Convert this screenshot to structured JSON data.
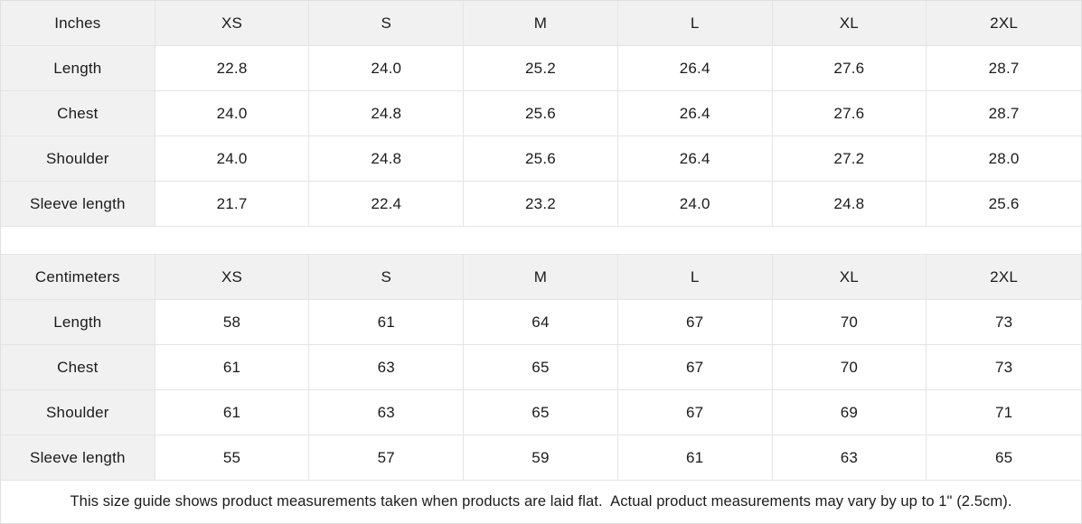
{
  "panel": {
    "border_color": "#e0e0e0",
    "header_bg": "#f1f1f2",
    "text_color": "#1b1b1b"
  },
  "tables": [
    {
      "unit_label": "Inches",
      "columns": [
        "XS",
        "S",
        "M",
        "L",
        "XL",
        "2XL"
      ],
      "rows": [
        {
          "label": "Length",
          "values": [
            "22.8",
            "24.0",
            "25.2",
            "26.4",
            "27.6",
            "28.7"
          ]
        },
        {
          "label": "Chest",
          "values": [
            "24.0",
            "24.8",
            "25.6",
            "26.4",
            "27.6",
            "28.7"
          ]
        },
        {
          "label": "Shoulder",
          "values": [
            "24.0",
            "24.8",
            "25.6",
            "26.4",
            "27.2",
            "28.0"
          ]
        },
        {
          "label": "Sleeve length",
          "values": [
            "21.7",
            "22.4",
            "23.2",
            "24.0",
            "24.8",
            "25.6"
          ]
        }
      ]
    },
    {
      "unit_label": "Centimeters",
      "columns": [
        "XS",
        "S",
        "M",
        "L",
        "XL",
        "2XL"
      ],
      "rows": [
        {
          "label": "Length",
          "values": [
            "58",
            "61",
            "64",
            "67",
            "70",
            "73"
          ]
        },
        {
          "label": "Chest",
          "values": [
            "61",
            "63",
            "65",
            "67",
            "70",
            "73"
          ]
        },
        {
          "label": "Shoulder",
          "values": [
            "61",
            "63",
            "65",
            "67",
            "69",
            "71"
          ]
        },
        {
          "label": "Sleeve length",
          "values": [
            "55",
            "57",
            "59",
            "61",
            "63",
            "65"
          ]
        }
      ]
    }
  ],
  "footer": {
    "note": "This size guide shows product measurements taken when products are laid flat.  Actual product measurements may vary by up to 1\" (2.5cm)."
  },
  "chart_data": [
    {
      "type": "table",
      "title": "Inches",
      "columns": [
        "Inches",
        "XS",
        "S",
        "M",
        "L",
        "XL",
        "2XL"
      ],
      "rows": [
        [
          "Length",
          22.8,
          24.0,
          25.2,
          26.4,
          27.6,
          28.7
        ],
        [
          "Chest",
          24.0,
          24.8,
          25.6,
          26.4,
          27.6,
          28.7
        ],
        [
          "Shoulder",
          24.0,
          24.8,
          25.6,
          26.4,
          27.2,
          28.0
        ],
        [
          "Sleeve length",
          21.7,
          22.4,
          23.2,
          24.0,
          24.8,
          25.6
        ]
      ]
    },
    {
      "type": "table",
      "title": "Centimeters",
      "columns": [
        "Centimeters",
        "XS",
        "S",
        "M",
        "L",
        "XL",
        "2XL"
      ],
      "rows": [
        [
          "Length",
          58,
          61,
          64,
          67,
          70,
          73
        ],
        [
          "Chest",
          61,
          63,
          65,
          67,
          70,
          73
        ],
        [
          "Shoulder",
          61,
          63,
          65,
          67,
          69,
          71
        ],
        [
          "Sleeve length",
          55,
          57,
          59,
          61,
          63,
          65
        ]
      ]
    }
  ]
}
